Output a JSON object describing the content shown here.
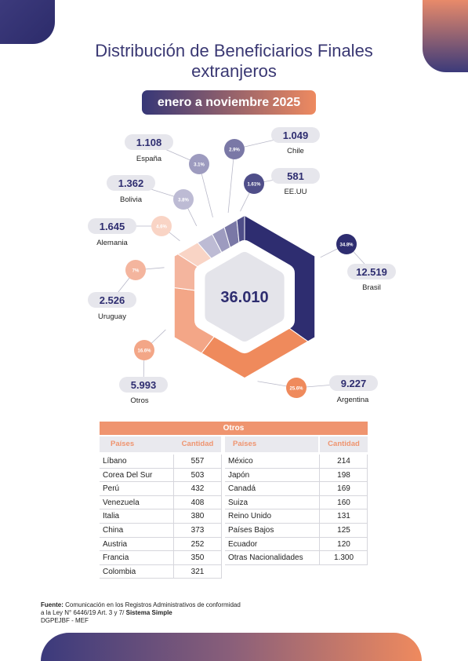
{
  "header": {
    "title_line1": "Distribución de Beneficiarios Finales",
    "title_line2": "extranjeros",
    "period": "enero a noviembre 2025"
  },
  "chart_data": {
    "type": "pie",
    "title": "Distribución de Beneficiarios Finales extranjeros",
    "center_label": "36.010",
    "total": 36010,
    "slices": [
      {
        "label": "Brasil",
        "value": 12519,
        "percent_label": "34.8%",
        "color": "#2e2d70"
      },
      {
        "label": "Argentina",
        "value": 9227,
        "percent_label": "25.6%",
        "color": "#ef8a5c"
      },
      {
        "label": "Otros",
        "value": 5993,
        "percent_label": "16.6%",
        "color": "#f3a687"
      },
      {
        "label": "Uruguay",
        "value": 2526,
        "percent_label": "7%",
        "color": "#f4b59e"
      },
      {
        "label": "Alemania",
        "value": 1645,
        "percent_label": "4.6%",
        "color": "#f9d4c5"
      },
      {
        "label": "Bolivia",
        "value": 1362,
        "percent_label": "3.8%",
        "color": "#bdbbd4"
      },
      {
        "label": "España",
        "value": 1108,
        "percent_label": "3.1%",
        "color": "#9d9bbf"
      },
      {
        "label": "Chile",
        "value": 1049,
        "percent_label": "2.9%",
        "color": "#7a78a6"
      },
      {
        "label": "EE.UU",
        "value": 581,
        "percent_label": "1.61%",
        "color": "#4f4e89"
      }
    ],
    "value_labels": [
      "12.519",
      "9.227",
      "5.993",
      "2.526",
      "1.645",
      "1.362",
      "1.108",
      "1.049",
      "581"
    ]
  },
  "table": {
    "title": "Otros",
    "col_country": "Países",
    "col_amount": "Cantidad",
    "left_rows": [
      {
        "country": "Líbano",
        "amount": "557"
      },
      {
        "country": "Corea Del Sur",
        "amount": "503"
      },
      {
        "country": "Perú",
        "amount": "432"
      },
      {
        "country": "Venezuela",
        "amount": "408"
      },
      {
        "country": "Italia",
        "amount": "380"
      },
      {
        "country": "China",
        "amount": "373"
      },
      {
        "country": "Austria",
        "amount": "252"
      },
      {
        "country": "Francia",
        "amount": "350"
      },
      {
        "country": "Colombia",
        "amount": "321"
      }
    ],
    "right_rows": [
      {
        "country": "México",
        "amount": "214"
      },
      {
        "country": "Japón",
        "amount": "198"
      },
      {
        "country": "Canadá",
        "amount": "169"
      },
      {
        "country": "Suiza",
        "amount": "160"
      },
      {
        "country": "Reino Unido",
        "amount": "131"
      },
      {
        "country": "Países Bajos",
        "amount": "125"
      },
      {
        "country": "Ecuador",
        "amount": "120"
      },
      {
        "country": "Otras Nacionalidades",
        "amount": "1.300"
      }
    ]
  },
  "footnote": {
    "source_label": "Fuente:",
    "line1": "Comunicación en los Registros Administrativos de conformidad",
    "line2_prefix": "a la Ley N° 6446/19 Art. 3 y 7/",
    "line2_bold": "Sistema Simple",
    "line3": "DGPEJBF - MEF"
  },
  "colors": {
    "navy": "#2e2d70",
    "orange": "#ef8a5c",
    "pill_gray": "#e6e6ec"
  }
}
